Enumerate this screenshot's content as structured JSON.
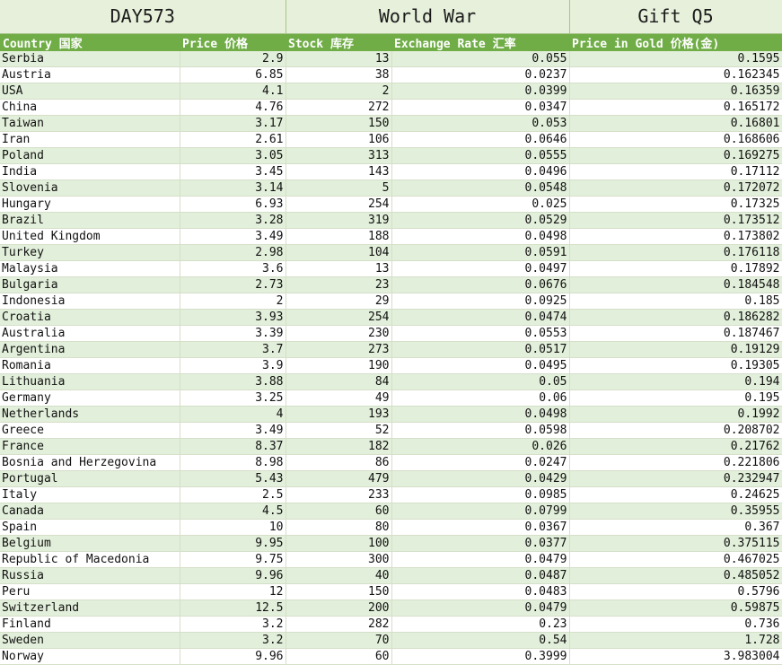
{
  "titles": [
    "DAY573",
    "World War",
    "Gift Q5"
  ],
  "columns": [
    "Country 国家",
    "Price 价格",
    "Stock 库存",
    "Exchange Rate 汇率",
    "Price in Gold 价格(金)"
  ],
  "rows": [
    [
      "Serbia",
      "2.9",
      "13",
      "0.055",
      "0.1595"
    ],
    [
      "Austria",
      "6.85",
      "38",
      "0.0237",
      "0.162345"
    ],
    [
      "USA",
      "4.1",
      "2",
      "0.0399",
      "0.16359"
    ],
    [
      "China",
      "4.76",
      "272",
      "0.0347",
      "0.165172"
    ],
    [
      "Taiwan",
      "3.17",
      "150",
      "0.053",
      "0.16801"
    ],
    [
      "Iran",
      "2.61",
      "106",
      "0.0646",
      "0.168606"
    ],
    [
      "Poland",
      "3.05",
      "313",
      "0.0555",
      "0.169275"
    ],
    [
      "India",
      "3.45",
      "143",
      "0.0496",
      "0.17112"
    ],
    [
      "Slovenia",
      "3.14",
      "5",
      "0.0548",
      "0.172072"
    ],
    [
      "Hungary",
      "6.93",
      "254",
      "0.025",
      "0.17325"
    ],
    [
      "Brazil",
      "3.28",
      "319",
      "0.0529",
      "0.173512"
    ],
    [
      "United Kingdom",
      "3.49",
      "188",
      "0.0498",
      "0.173802"
    ],
    [
      "Turkey",
      "2.98",
      "104",
      "0.0591",
      "0.176118"
    ],
    [
      "Malaysia",
      "3.6",
      "13",
      "0.0497",
      "0.17892"
    ],
    [
      "Bulgaria",
      "2.73",
      "23",
      "0.0676",
      "0.184548"
    ],
    [
      "Indonesia",
      "2",
      "29",
      "0.0925",
      "0.185"
    ],
    [
      "Croatia",
      "3.93",
      "254",
      "0.0474",
      "0.186282"
    ],
    [
      "Australia",
      "3.39",
      "230",
      "0.0553",
      "0.187467"
    ],
    [
      "Argentina",
      "3.7",
      "273",
      "0.0517",
      "0.19129"
    ],
    [
      "Romania",
      "3.9",
      "190",
      "0.0495",
      "0.19305"
    ],
    [
      "Lithuania",
      "3.88",
      "84",
      "0.05",
      "0.194"
    ],
    [
      "Germany",
      "3.25",
      "49",
      "0.06",
      "0.195"
    ],
    [
      "Netherlands",
      "4",
      "193",
      "0.0498",
      "0.1992"
    ],
    [
      "Greece",
      "3.49",
      "52",
      "0.0598",
      "0.208702"
    ],
    [
      "France",
      "8.37",
      "182",
      "0.026",
      "0.21762"
    ],
    [
      "Bosnia and Herzegovina",
      "8.98",
      "86",
      "0.0247",
      "0.221806"
    ],
    [
      "Portugal",
      "5.43",
      "479",
      "0.0429",
      "0.232947"
    ],
    [
      "Italy",
      "2.5",
      "233",
      "0.0985",
      "0.24625"
    ],
    [
      "Canada",
      "4.5",
      "60",
      "0.0799",
      "0.35955"
    ],
    [
      "Spain",
      "10",
      "80",
      "0.0367",
      "0.367"
    ],
    [
      "Belgium",
      "9.95",
      "100",
      "0.0377",
      "0.375115"
    ],
    [
      "Republic of Macedonia",
      "9.75",
      "300",
      "0.0479",
      "0.467025"
    ],
    [
      "Russia",
      "9.96",
      "40",
      "0.0487",
      "0.485052"
    ],
    [
      "Peru",
      "12",
      "150",
      "0.0483",
      "0.5796"
    ],
    [
      "Switzerland",
      "12.5",
      "200",
      "0.0479",
      "0.59875"
    ],
    [
      "Finland",
      "3.2",
      "282",
      "0.23",
      "0.736"
    ],
    [
      "Sweden",
      "3.2",
      "70",
      "0.54",
      "1.728"
    ],
    [
      "Norway",
      "9.96",
      "60",
      "0.3999",
      "3.983004"
    ]
  ]
}
